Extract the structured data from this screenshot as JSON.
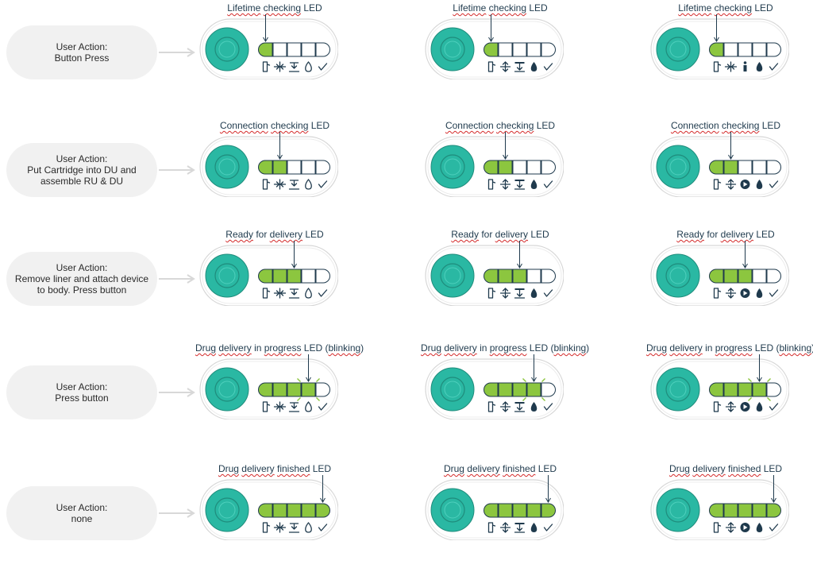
{
  "colors": {
    "button_teal": "#2ab8a3",
    "led_green": "#8cc63f",
    "outline": "#1f3a4d",
    "bubble": "#f1f1f1",
    "squiggle": "#d42a2a"
  },
  "rows": [
    {
      "id": "lifetime",
      "action_lines": [
        "User Action:",
        "Button Press"
      ],
      "caption": "Lifetime checking LED",
      "lit_count": 1,
      "blink_index": -1,
      "panel_icons": [
        [
          "cartridge-icon",
          "retract-icon",
          "needle-icon",
          "drop-outline-icon",
          "check-icon"
        ],
        [
          "cartridge-icon",
          "insert-needle-icon",
          "needle-down-icon",
          "drop-icon",
          "check-icon"
        ],
        [
          "cartridge-icon",
          "retract-icon",
          "person-icon",
          "drop-icon",
          "check-icon"
        ]
      ]
    },
    {
      "id": "connection",
      "action_lines": [
        "User Action:",
        "Put Cartridge into DU and",
        "assemble RU & DU"
      ],
      "caption": "Connection checking LED",
      "lit_count": 2,
      "blink_index": -1,
      "panel_icons": [
        [
          "cartridge-icon",
          "retract-icon",
          "needle-icon",
          "drop-outline-icon",
          "check-icon"
        ],
        [
          "cartridge-icon",
          "insert-needle-icon",
          "needle-down-icon",
          "drop-icon",
          "check-icon"
        ],
        [
          "cartridge-icon",
          "insert-needle-icon",
          "play-icon",
          "drop-icon",
          "check-icon"
        ]
      ]
    },
    {
      "id": "ready",
      "action_lines": [
        "User Action:",
        "Remove liner and attach device",
        "to body. Press button"
      ],
      "caption": "Ready for delivery LED",
      "lit_count": 3,
      "blink_index": -1,
      "panel_icons": [
        [
          "cartridge-icon",
          "retract-icon",
          "needle-icon",
          "drop-outline-icon",
          "check-icon"
        ],
        [
          "cartridge-icon",
          "insert-needle-icon",
          "needle-down-icon",
          "drop-icon",
          "check-icon"
        ],
        [
          "cartridge-icon",
          "insert-needle-icon",
          "play-icon",
          "drop-icon",
          "check-icon"
        ]
      ]
    },
    {
      "id": "delivery",
      "action_lines": [
        "User Action:",
        "Press button"
      ],
      "caption": "Drug delivery in progress LED (blinking)",
      "lit_count": 4,
      "blink_index": 3,
      "panel_icons": [
        [
          "cartridge-icon",
          "retract-icon",
          "needle-icon",
          "drop-outline-icon",
          "check-icon"
        ],
        [
          "cartridge-icon",
          "insert-needle-icon",
          "needle-down-icon",
          "drop-icon",
          "check-icon"
        ],
        [
          "cartridge-icon",
          "insert-needle-icon",
          "play-icon",
          "drop-icon",
          "check-icon"
        ]
      ]
    },
    {
      "id": "finished",
      "action_lines": [
        "User Action:",
        "none"
      ],
      "caption": "Drug delivery finished LED",
      "lit_count": 5,
      "blink_index": -1,
      "panel_icons": [
        [
          "cartridge-icon",
          "retract-icon",
          "needle-icon",
          "drop-outline-icon",
          "check-icon"
        ],
        [
          "cartridge-icon",
          "insert-needle-icon",
          "needle-down-icon",
          "drop-icon",
          "check-icon"
        ],
        [
          "cartridge-icon",
          "insert-needle-icon",
          "play-icon",
          "drop-icon",
          "check-icon"
        ]
      ]
    }
  ]
}
